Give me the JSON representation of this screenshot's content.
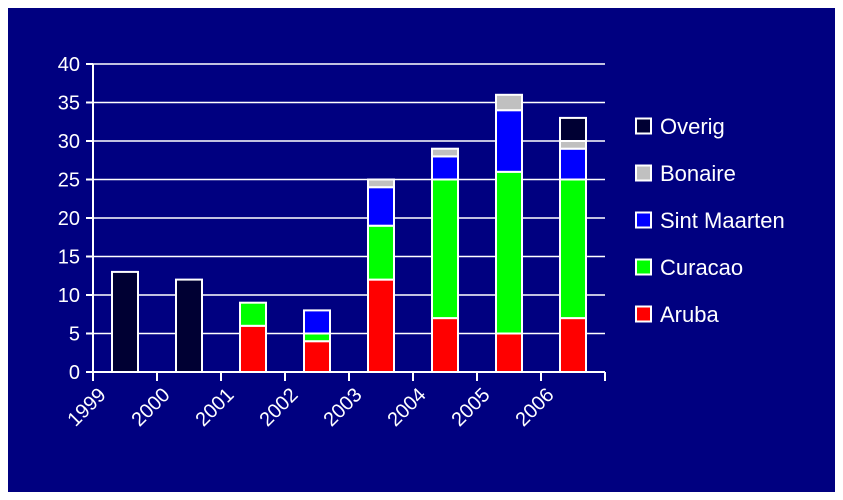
{
  "chart_data": {
    "type": "bar",
    "stacked": true,
    "categories": [
      "1999",
      "2000",
      "2001",
      "2002",
      "2003",
      "2004",
      "2005",
      "2006"
    ],
    "series": [
      {
        "name": "Aruba",
        "color": "#ff0000",
        "values": [
          0,
          0,
          6,
          4,
          12,
          7,
          5,
          7
        ]
      },
      {
        "name": "Curacao",
        "color": "#00ff00",
        "values": [
          0,
          0,
          3,
          1,
          7,
          18,
          21,
          18
        ]
      },
      {
        "name": "Sint Maarten",
        "color": "#0000ff",
        "values": [
          0,
          0,
          0,
          3,
          5,
          3,
          8,
          4
        ]
      },
      {
        "name": "Bonaire",
        "color": "#c0c0c0",
        "values": [
          0,
          0,
          0,
          0,
          1,
          1,
          2,
          1
        ]
      },
      {
        "name": "Overig",
        "color": "#000033",
        "values": [
          13,
          12,
          0,
          0,
          0,
          0,
          0,
          3
        ]
      }
    ],
    "legend_order": [
      "Overig",
      "Bonaire",
      "Sint Maarten",
      "Curacao",
      "Aruba"
    ],
    "ylim": [
      0,
      40
    ],
    "yticks": [
      0,
      5,
      10,
      15,
      20,
      25,
      30,
      35,
      40
    ],
    "grid": true,
    "legend_position": "right",
    "background_color": "#000080",
    "axis_color": "#ffffff"
  }
}
